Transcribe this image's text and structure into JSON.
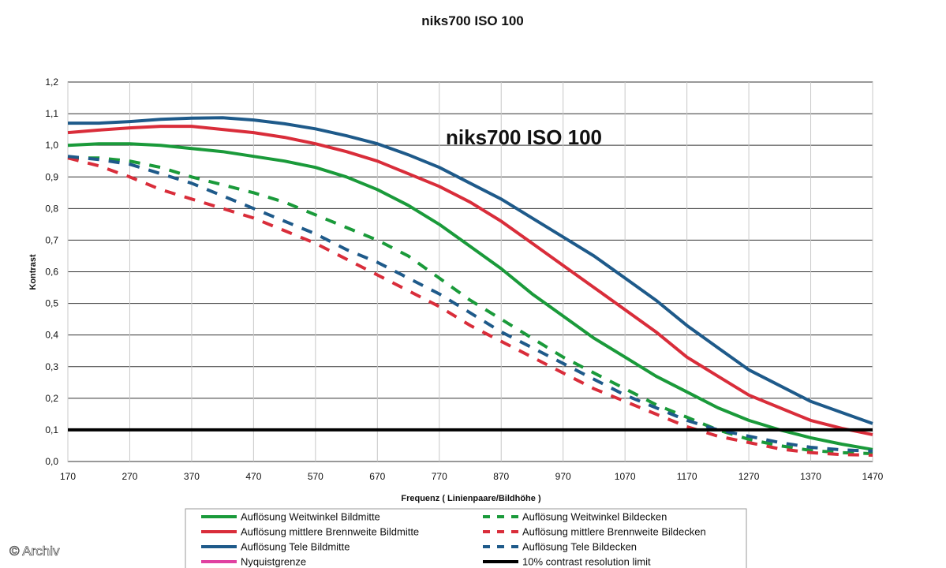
{
  "chart_data": {
    "type": "line",
    "title": "niks700 ISO 100",
    "inner_title": "niks700 ISO 100",
    "xlabel": "Frequenz ( Linienpaare/Bildhöhe )",
    "ylabel": "Kontrast",
    "xlim": [
      170,
      1470
    ],
    "ylim": [
      0,
      1.2
    ],
    "x_ticks": [
      170,
      270,
      370,
      470,
      570,
      670,
      770,
      870,
      970,
      1070,
      1170,
      1270,
      1370,
      1470
    ],
    "y_ticks": [
      0,
      0.1,
      0.2,
      0.3,
      0.4,
      0.5,
      0.6,
      0.7,
      0.8,
      0.9,
      1.0,
      1.1,
      1.2
    ],
    "y_tick_labels": [
      "0,0",
      "0,1",
      "0,2",
      "0,3",
      "0,4",
      "0,5",
      "0,6",
      "0,7",
      "0,8",
      "0,9",
      "1,0",
      "1,1",
      "1,2"
    ],
    "series": [
      {
        "name": "Auflösung Weitwinkel Bildmitte",
        "color": "#1a9a3a",
        "style": "solid",
        "points": [
          [
            170,
            1.0
          ],
          [
            220,
            1.005
          ],
          [
            270,
            1.005
          ],
          [
            320,
            1.0
          ],
          [
            370,
            0.99
          ],
          [
            420,
            0.98
          ],
          [
            470,
            0.965
          ],
          [
            520,
            0.95
          ],
          [
            570,
            0.93
          ],
          [
            620,
            0.9
          ],
          [
            670,
            0.86
          ],
          [
            720,
            0.81
          ],
          [
            770,
            0.75
          ],
          [
            820,
            0.68
          ],
          [
            870,
            0.61
          ],
          [
            920,
            0.53
          ],
          [
            970,
            0.46
          ],
          [
            1020,
            0.39
          ],
          [
            1070,
            0.33
          ],
          [
            1120,
            0.27
          ],
          [
            1170,
            0.22
          ],
          [
            1220,
            0.17
          ],
          [
            1270,
            0.13
          ],
          [
            1320,
            0.1
          ],
          [
            1370,
            0.075
          ],
          [
            1420,
            0.055
          ],
          [
            1470,
            0.038
          ]
        ]
      },
      {
        "name": "Auflösung mittlere Brennweite Bildmitte",
        "color": "#d92d3a",
        "style": "solid",
        "points": [
          [
            170,
            1.04
          ],
          [
            220,
            1.048
          ],
          [
            270,
            1.055
          ],
          [
            320,
            1.06
          ],
          [
            370,
            1.06
          ],
          [
            420,
            1.05
          ],
          [
            470,
            1.04
          ],
          [
            520,
            1.025
          ],
          [
            570,
            1.005
          ],
          [
            620,
            0.98
          ],
          [
            670,
            0.95
          ],
          [
            720,
            0.91
          ],
          [
            770,
            0.87
          ],
          [
            820,
            0.82
          ],
          [
            870,
            0.76
          ],
          [
            920,
            0.69
          ],
          [
            970,
            0.62
          ],
          [
            1020,
            0.55
          ],
          [
            1070,
            0.48
          ],
          [
            1120,
            0.41
          ],
          [
            1170,
            0.33
          ],
          [
            1220,
            0.27
          ],
          [
            1270,
            0.21
          ],
          [
            1320,
            0.17
          ],
          [
            1370,
            0.13
          ],
          [
            1420,
            0.105
          ],
          [
            1470,
            0.085
          ]
        ]
      },
      {
        "name": "Auflösung Tele Bildmitte",
        "color": "#1e5a8a",
        "style": "solid",
        "points": [
          [
            170,
            1.07
          ],
          [
            220,
            1.07
          ],
          [
            270,
            1.075
          ],
          [
            320,
            1.082
          ],
          [
            370,
            1.086
          ],
          [
            420,
            1.087
          ],
          [
            470,
            1.08
          ],
          [
            520,
            1.068
          ],
          [
            570,
            1.052
          ],
          [
            620,
            1.03
          ],
          [
            670,
            1.005
          ],
          [
            720,
            0.97
          ],
          [
            770,
            0.93
          ],
          [
            820,
            0.88
          ],
          [
            870,
            0.83
          ],
          [
            920,
            0.77
          ],
          [
            970,
            0.71
          ],
          [
            1020,
            0.65
          ],
          [
            1070,
            0.58
          ],
          [
            1120,
            0.51
          ],
          [
            1170,
            0.43
          ],
          [
            1220,
            0.36
          ],
          [
            1270,
            0.29
          ],
          [
            1320,
            0.24
          ],
          [
            1370,
            0.19
          ],
          [
            1420,
            0.155
          ],
          [
            1470,
            0.12
          ]
        ]
      },
      {
        "name": "Auflösung Weitwinkel Bildecken",
        "color": "#1a9a3a",
        "style": "dashed",
        "points": [
          [
            170,
            0.96
          ],
          [
            220,
            0.96
          ],
          [
            270,
            0.95
          ],
          [
            320,
            0.93
          ],
          [
            370,
            0.9
          ],
          [
            420,
            0.875
          ],
          [
            470,
            0.85
          ],
          [
            520,
            0.82
          ],
          [
            570,
            0.78
          ],
          [
            620,
            0.74
          ],
          [
            670,
            0.7
          ],
          [
            720,
            0.65
          ],
          [
            770,
            0.58
          ],
          [
            820,
            0.51
          ],
          [
            870,
            0.45
          ],
          [
            920,
            0.39
          ],
          [
            970,
            0.33
          ],
          [
            1020,
            0.28
          ],
          [
            1070,
            0.23
          ],
          [
            1120,
            0.18
          ],
          [
            1170,
            0.14
          ],
          [
            1220,
            0.1
          ],
          [
            1270,
            0.07
          ],
          [
            1320,
            0.05
          ],
          [
            1370,
            0.035
          ],
          [
            1420,
            0.028
          ],
          [
            1470,
            0.025
          ]
        ]
      },
      {
        "name": "Auflösung mittlere Brennweite Bildecken",
        "color": "#d92d3a",
        "style": "dashed",
        "points": [
          [
            170,
            0.96
          ],
          [
            220,
            0.935
          ],
          [
            270,
            0.9
          ],
          [
            320,
            0.86
          ],
          [
            370,
            0.83
          ],
          [
            420,
            0.8
          ],
          [
            470,
            0.77
          ],
          [
            520,
            0.73
          ],
          [
            570,
            0.69
          ],
          [
            620,
            0.64
          ],
          [
            670,
            0.59
          ],
          [
            720,
            0.54
          ],
          [
            770,
            0.49
          ],
          [
            820,
            0.43
          ],
          [
            870,
            0.38
          ],
          [
            920,
            0.33
          ],
          [
            970,
            0.28
          ],
          [
            1020,
            0.23
          ],
          [
            1070,
            0.19
          ],
          [
            1120,
            0.15
          ],
          [
            1170,
            0.11
          ],
          [
            1220,
            0.08
          ],
          [
            1270,
            0.06
          ],
          [
            1320,
            0.04
          ],
          [
            1370,
            0.028
          ],
          [
            1420,
            0.022
          ],
          [
            1470,
            0.02
          ]
        ]
      },
      {
        "name": "Auflösung Tele Bildecken",
        "color": "#1e5a8a",
        "style": "dashed",
        "points": [
          [
            170,
            0.965
          ],
          [
            220,
            0.955
          ],
          [
            270,
            0.94
          ],
          [
            320,
            0.91
          ],
          [
            370,
            0.88
          ],
          [
            420,
            0.84
          ],
          [
            470,
            0.8
          ],
          [
            520,
            0.76
          ],
          [
            570,
            0.72
          ],
          [
            620,
            0.67
          ],
          [
            670,
            0.63
          ],
          [
            720,
            0.58
          ],
          [
            770,
            0.53
          ],
          [
            820,
            0.47
          ],
          [
            870,
            0.41
          ],
          [
            920,
            0.36
          ],
          [
            970,
            0.31
          ],
          [
            1020,
            0.26
          ],
          [
            1070,
            0.21
          ],
          [
            1120,
            0.17
          ],
          [
            1170,
            0.13
          ],
          [
            1220,
            0.1
          ],
          [
            1270,
            0.08
          ],
          [
            1320,
            0.06
          ],
          [
            1370,
            0.045
          ],
          [
            1420,
            0.037
          ],
          [
            1470,
            0.033
          ]
        ]
      },
      {
        "name": "10% contrast resolution limit",
        "color": "#000000",
        "style": "solid-thick",
        "points": [
          [
            170,
            0.1
          ],
          [
            1470,
            0.1
          ]
        ]
      }
    ],
    "legend": {
      "position": "bottom",
      "left_column": [
        {
          "label": "Auflösung Weitwinkel Bildmitte",
          "color": "#1a9a3a",
          "style": "solid"
        },
        {
          "label": "Auflösung mittlere Brennweite Bildmitte",
          "color": "#d92d3a",
          "style": "solid"
        },
        {
          "label": "Auflösung Tele Bildmitte",
          "color": "#1e5a8a",
          "style": "solid"
        },
        {
          "label": "Nyquistgrenze",
          "color": "#e040a0",
          "style": "solid"
        }
      ],
      "right_column": [
        {
          "label": "Auflösung Weitwinkel Bildecken",
          "color": "#1a9a3a",
          "style": "dashed"
        },
        {
          "label": "Auflösung mittlere Brennweite Bildecken",
          "color": "#d92d3a",
          "style": "dashed"
        },
        {
          "label": "Auflösung Tele Bildecken",
          "color": "#1e5a8a",
          "style": "dashed"
        },
        {
          "label": "10% contrast resolution limit",
          "color": "#000000",
          "style": "solid-thick"
        }
      ]
    },
    "grid": "horizontal + vertical"
  },
  "watermark": "© Archiv"
}
